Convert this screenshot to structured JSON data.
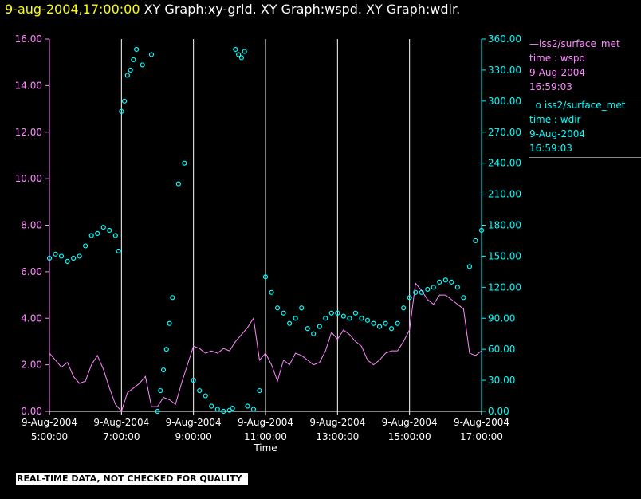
{
  "header": {
    "timestamp": "9-aug-2004,17:00:00",
    "graphs": "XY Graph:xy-grid.  XY Graph:wspd.  XY Graph:wdir."
  },
  "legend": [
    {
      "source": "iss2/surface_met",
      "variable": "time : wspd",
      "date": "9-Aug-2004",
      "time": "16:59:03",
      "color": "#ff88ff",
      "symbol": "line"
    },
    {
      "source": "iss2/surface_met",
      "variable": "time : wdir",
      "date": "9-Aug-2004",
      "time": "16:59:03",
      "color": "#00ffff",
      "symbol": "circle"
    }
  ],
  "notice": "REAL-TIME DATA, NOT CHECKED FOR QUALITY",
  "chart_data": {
    "type": "scatter",
    "xlabel": "Time",
    "xlim": [
      "05:00",
      "17:00"
    ],
    "x_ticks": [
      {
        "date": "9-Aug-2004",
        "time": "5:00:00"
      },
      {
        "date": "9-Aug-2004",
        "time": "7:00:00"
      },
      {
        "date": "9-Aug-2004",
        "time": "9:00:00"
      },
      {
        "date": "9-Aug-2004",
        "time": "11:00:00"
      },
      {
        "date": "9-Aug-2004",
        "time": "13:00:00"
      },
      {
        "date": "9-Aug-2004",
        "time": "15:00:00"
      },
      {
        "date": "9-Aug-2004",
        "time": "17:00:00"
      }
    ],
    "y_left": {
      "lim": [
        0,
        16
      ],
      "ticks": [
        "0.00",
        "2.00",
        "4.00",
        "6.00",
        "8.00",
        "10.00",
        "12.00",
        "14.00",
        "16.00"
      ],
      "color": "#ff88ff"
    },
    "y_right": {
      "lim": [
        0,
        360
      ],
      "ticks": [
        "0.00",
        "30.00",
        "60.00",
        "90.00",
        "120.00",
        "150.00",
        "180.00",
        "210.00",
        "240.00",
        "270.00",
        "300.00",
        "330.00",
        "360.00"
      ],
      "color": "#00ffff"
    },
    "grid": "vertical",
    "series": [
      {
        "name": "wspd",
        "axis": "left",
        "style": "line",
        "color": "#ff88ff",
        "x": [
          "05:00",
          "05:10",
          "05:20",
          "05:30",
          "05:40",
          "05:50",
          "06:00",
          "06:10",
          "06:20",
          "06:30",
          "06:40",
          "06:50",
          "07:00",
          "07:10",
          "07:20",
          "07:30",
          "07:40",
          "07:50",
          "08:00",
          "08:10",
          "08:20",
          "08:30",
          "08:40",
          "08:50",
          "09:00",
          "09:10",
          "09:20",
          "09:30",
          "09:40",
          "09:50",
          "10:00",
          "10:10",
          "10:20",
          "10:30",
          "10:40",
          "10:50",
          "11:00",
          "11:10",
          "11:20",
          "11:30",
          "11:40",
          "11:50",
          "12:00",
          "12:10",
          "12:20",
          "12:30",
          "12:40",
          "12:50",
          "13:00",
          "13:10",
          "13:20",
          "13:30",
          "13:40",
          "13:50",
          "14:00",
          "14:10",
          "14:20",
          "14:30",
          "14:40",
          "14:50",
          "15:00",
          "15:10",
          "15:20",
          "15:30",
          "15:40",
          "15:50",
          "16:00",
          "16:10",
          "16:20",
          "16:30",
          "16:40",
          "16:50",
          "17:00"
        ],
        "y": [
          2.5,
          2.2,
          1.9,
          2.1,
          1.5,
          1.2,
          1.3,
          2.0,
          2.4,
          1.8,
          1.0,
          0.3,
          0.0,
          0.8,
          1.0,
          1.2,
          1.5,
          0.2,
          0.2,
          0.6,
          0.5,
          0.3,
          1.2,
          2.0,
          2.8,
          2.7,
          2.5,
          2.6,
          2.5,
          2.7,
          2.6,
          3.0,
          3.3,
          3.6,
          4.0,
          2.2,
          2.5,
          2.0,
          1.3,
          2.2,
          2.0,
          2.5,
          2.4,
          2.2,
          2.0,
          2.1,
          2.6,
          3.4,
          3.1,
          3.5,
          3.3,
          3.0,
          2.8,
          2.2,
          2.0,
          2.2,
          2.5,
          2.6,
          2.6,
          3.0,
          3.5,
          5.5,
          5.2,
          4.8,
          4.6,
          5.0,
          5.0,
          4.8,
          4.6,
          4.4,
          2.5,
          2.4,
          2.6
        ]
      },
      {
        "name": "wdir",
        "axis": "right",
        "style": "circle",
        "color": "#00ffff",
        "x": [
          "05:00",
          "05:10",
          "05:20",
          "05:30",
          "05:40",
          "05:50",
          "06:00",
          "06:10",
          "06:20",
          "06:30",
          "06:40",
          "06:50",
          "06:55",
          "07:00",
          "07:05",
          "07:10",
          "07:15",
          "07:20",
          "07:25",
          "07:35",
          "07:50",
          "08:00",
          "08:05",
          "08:10",
          "08:15",
          "08:20",
          "08:25",
          "08:35",
          "08:45",
          "09:00",
          "09:10",
          "09:20",
          "09:30",
          "09:40",
          "09:50",
          "10:00",
          "10:05",
          "10:10",
          "10:15",
          "10:20",
          "10:25",
          "10:30",
          "10:40",
          "10:50",
          "11:00",
          "11:10",
          "11:20",
          "11:30",
          "11:40",
          "11:50",
          "12:00",
          "12:10",
          "12:20",
          "12:30",
          "12:40",
          "12:50",
          "13:00",
          "13:10",
          "13:20",
          "13:30",
          "13:40",
          "13:50",
          "14:00",
          "14:10",
          "14:20",
          "14:30",
          "14:40",
          "14:50",
          "15:00",
          "15:10",
          "15:20",
          "15:30",
          "15:40",
          "15:50",
          "16:00",
          "16:10",
          "16:20",
          "16:30",
          "16:40",
          "16:50",
          "17:00"
        ],
        "y": [
          148,
          152,
          150,
          145,
          148,
          150,
          160,
          170,
          172,
          178,
          175,
          170,
          155,
          290,
          300,
          325,
          330,
          340,
          350,
          335,
          345,
          0,
          20,
          40,
          60,
          85,
          110,
          220,
          240,
          30,
          20,
          15,
          5,
          2,
          0,
          1,
          3,
          350,
          345,
          342,
          348,
          5,
          2,
          20,
          130,
          115,
          100,
          95,
          85,
          90,
          100,
          80,
          75,
          82,
          90,
          95,
          95,
          92,
          90,
          95,
          90,
          88,
          85,
          82,
          85,
          80,
          85,
          100,
          110,
          115,
          115,
          118,
          120,
          125,
          127,
          125,
          120,
          110,
          140,
          165,
          175
        ]
      }
    ]
  }
}
